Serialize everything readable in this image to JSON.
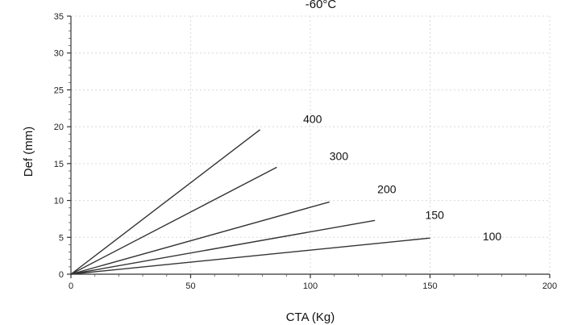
{
  "chart_data": {
    "type": "line",
    "title": "-60°C",
    "xlabel": "CTA (Kg)",
    "ylabel": "Def (mm)",
    "xlim": [
      0,
      200
    ],
    "ylim": [
      0,
      35
    ],
    "xticks": [
      "0",
      "50",
      "100",
      "150",
      "200"
    ],
    "yticks": [
      "0",
      "5",
      "10",
      "15",
      "20",
      "25",
      "30",
      "35"
    ],
    "grid": true,
    "series": [
      {
        "name": "400",
        "x": [
          0,
          79
        ],
        "y": [
          0,
          19.6
        ]
      },
      {
        "name": "300",
        "x": [
          0,
          86
        ],
        "y": [
          0,
          14.5
        ]
      },
      {
        "name": "200",
        "x": [
          0,
          108
        ],
        "y": [
          0,
          9.8
        ]
      },
      {
        "name": "150",
        "x": [
          0,
          127
        ],
        "y": [
          0,
          7.3
        ]
      },
      {
        "name": "100",
        "x": [
          0,
          150
        ],
        "y": [
          0,
          4.9
        ]
      }
    ],
    "series_label_positions": [
      {
        "name": "400",
        "x": 97,
        "y": 20.5
      },
      {
        "name": "300",
        "x": 108,
        "y": 15.5
      },
      {
        "name": "200",
        "x": 128,
        "y": 11.0
      },
      {
        "name": "150",
        "x": 148,
        "y": 7.5
      },
      {
        "name": "100",
        "x": 172,
        "y": 4.6
      }
    ]
  }
}
